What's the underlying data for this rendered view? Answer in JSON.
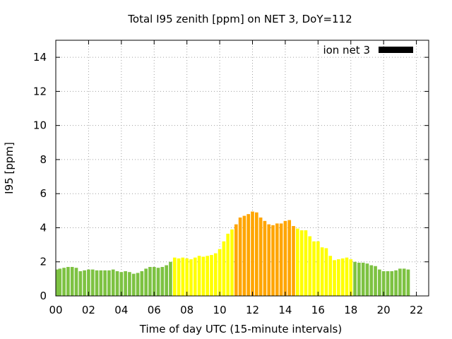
{
  "chart_data": {
    "type": "bar",
    "title": "Total I95 zenith [ppm] on NET 3, DoY=112",
    "xlabel": "Time of day UTC (15-minute intervals)",
    "ylabel": "I95 [ppm]",
    "ylim": [
      0,
      15
    ],
    "yticks": [
      "0",
      "2",
      "4",
      "6",
      "8",
      "10",
      "12",
      "14"
    ],
    "xlim": [
      0,
      22.75
    ],
    "xticks": [
      "00",
      "02",
      "04",
      "06",
      "08",
      "10",
      "12",
      "14",
      "16",
      "18",
      "20",
      "22"
    ],
    "grid": true,
    "legend": {
      "label": "ion net 3",
      "color": "#000000",
      "position": "top-right"
    },
    "level_colors": {
      "low": "#7dc242",
      "medium": "#ffff00",
      "high": "#ffa500"
    },
    "interval_hours": 0.25,
    "x_start": 0,
    "values": [
      1.55,
      1.6,
      1.65,
      1.7,
      1.7,
      1.65,
      1.45,
      1.5,
      1.55,
      1.55,
      1.5,
      1.5,
      1.5,
      1.5,
      1.55,
      1.45,
      1.4,
      1.45,
      1.4,
      1.3,
      1.35,
      1.45,
      1.6,
      1.7,
      1.7,
      1.65,
      1.7,
      1.8,
      2.0,
      2.25,
      2.2,
      2.25,
      2.2,
      2.15,
      2.25,
      2.35,
      2.3,
      2.35,
      2.4,
      2.5,
      2.75,
      3.2,
      3.65,
      3.9,
      4.2,
      4.6,
      4.7,
      4.8,
      4.95,
      4.9,
      4.6,
      4.4,
      4.2,
      4.15,
      4.25,
      4.25,
      4.4,
      4.45,
      4.1,
      3.95,
      3.85,
      3.85,
      3.5,
      3.2,
      3.2,
      2.85,
      2.8,
      2.35,
      2.1,
      2.15,
      2.2,
      2.25,
      2.15,
      2.0,
      1.95,
      1.95,
      1.9,
      1.8,
      1.75,
      1.55,
      1.45,
      1.45,
      1.45,
      1.5,
      1.6,
      1.6,
      1.55
    ],
    "levels": [
      "low",
      "low",
      "low",
      "low",
      "low",
      "low",
      "low",
      "low",
      "low",
      "low",
      "low",
      "low",
      "low",
      "low",
      "low",
      "low",
      "low",
      "low",
      "low",
      "low",
      "low",
      "low",
      "low",
      "low",
      "low",
      "low",
      "low",
      "low",
      "low",
      "medium",
      "medium",
      "medium",
      "medium",
      "medium",
      "medium",
      "medium",
      "medium",
      "medium",
      "medium",
      "medium",
      "medium",
      "medium",
      "medium",
      "medium",
      "high",
      "high",
      "high",
      "high",
      "high",
      "high",
      "high",
      "high",
      "high",
      "high",
      "high",
      "high",
      "high",
      "high",
      "high",
      "medium",
      "medium",
      "medium",
      "medium",
      "medium",
      "medium",
      "medium",
      "medium",
      "medium",
      "medium",
      "medium",
      "medium",
      "medium",
      "medium",
      "low",
      "low",
      "low",
      "low",
      "low",
      "low",
      "low",
      "low",
      "low",
      "low",
      "low",
      "low",
      "low",
      "low"
    ]
  }
}
